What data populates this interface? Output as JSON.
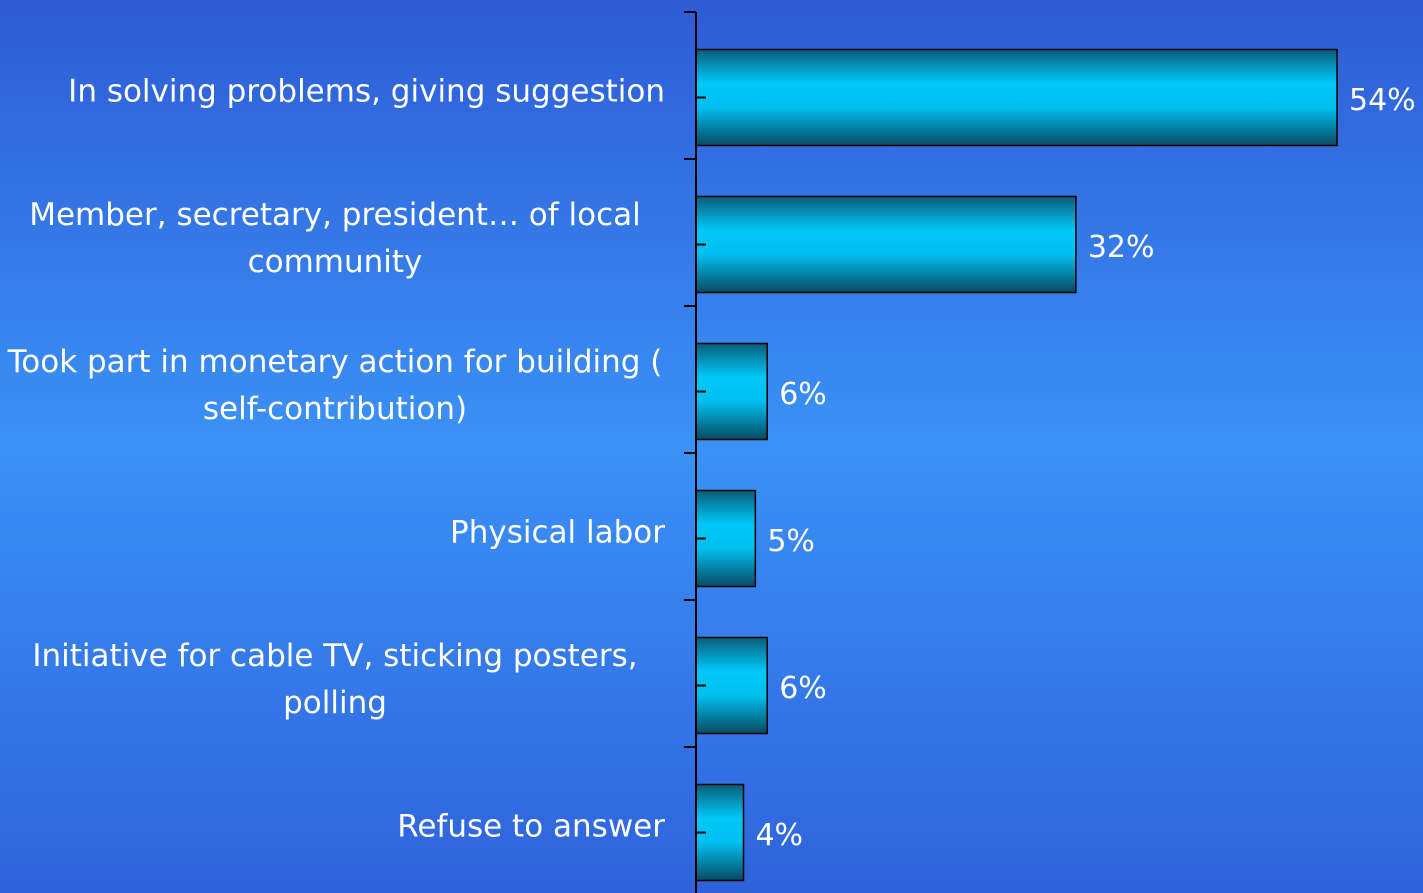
{
  "chart_data": {
    "type": "bar",
    "orientation": "horizontal",
    "categories": [
      "In solving problems, giving suggestion",
      "Member, secretary, president… of local community",
      "Took part in monetary action for building ( self-contribution)",
      "Physical labor",
      "Initiative for cable TV, sticking posters, polling",
      "Refuse to answer"
    ],
    "values": [
      54,
      32,
      6,
      5,
      6,
      4
    ],
    "value_labels": [
      "54%",
      "32%",
      "6%",
      "5%",
      "6%",
      "4%"
    ],
    "color": "#00c8f8"
  }
}
